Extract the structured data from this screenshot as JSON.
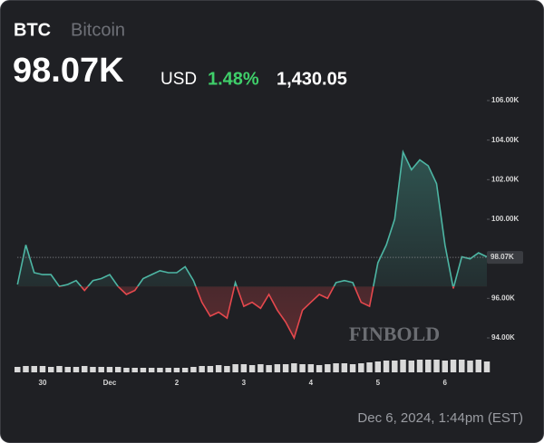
{
  "chart_data": {
    "type": "line",
    "symbol": "BTC",
    "name": "Bitcoin",
    "last_price": {
      "value": 98.07,
      "label": "98.07K"
    },
    "currency": "USD",
    "change_pct": "1.48%",
    "change_abs": "1,430.05",
    "timestamp": "Dec 6, 2024, 1:44pm (EST)",
    "watermark": "FINBOLD",
    "categories": [
      null,
      null,
      null,
      "30",
      null,
      null,
      null,
      null,
      null,
      null,
      null,
      "Dec",
      null,
      null,
      null,
      null,
      null,
      null,
      null,
      "2",
      null,
      null,
      null,
      null,
      null,
      null,
      null,
      "3",
      null,
      null,
      null,
      null,
      null,
      null,
      null,
      "4",
      null,
      null,
      null,
      null,
      null,
      null,
      null,
      "5",
      null,
      null,
      null,
      null,
      null,
      null,
      null,
      "6",
      null,
      null,
      null,
      null,
      null
    ],
    "series": [
      {
        "name": "BTC",
        "color": "#4db6a4",
        "below_color": "#e5484d",
        "values": [
          96.7,
          98.7,
          97.3,
          97.2,
          97.2,
          96.6,
          96.7,
          96.9,
          96.4,
          96.9,
          97.0,
          97.2,
          96.6,
          96.2,
          96.4,
          97.0,
          97.2,
          97.4,
          97.3,
          97.3,
          97.6,
          96.9,
          95.8,
          95.1,
          95.3,
          95.0,
          96.8,
          95.6,
          95.8,
          95.5,
          96.2,
          95.4,
          94.8,
          94.0,
          95.4,
          95.8,
          96.2,
          96.0,
          96.8,
          96.9,
          96.8,
          95.8,
          95.6,
          97.8,
          98.7,
          100.0,
          103.4,
          102.5,
          103.0,
          102.7,
          101.8,
          98.7,
          96.5,
          98.1,
          98.0,
          98.3,
          98.1
        ]
      }
    ],
    "baseline": 96.6,
    "volume": {
      "color": "#d9d9d9",
      "values": [
        6,
        7,
        7,
        7,
        6,
        7,
        6,
        6,
        7,
        6,
        6,
        6,
        6,
        5,
        5,
        5,
        5,
        5,
        5,
        5,
        5,
        6,
        7,
        7,
        8,
        7,
        9,
        9,
        8,
        9,
        8,
        9,
        9,
        10,
        9,
        9,
        8,
        9,
        10,
        10,
        9,
        10,
        11,
        12,
        13,
        13,
        14,
        13,
        14,
        14,
        14,
        13,
        14,
        14,
        13,
        14,
        12
      ],
      "vlim": [
        0,
        16
      ]
    },
    "ylim": [
      94,
      106
    ],
    "yticks": [
      {
        "value": 94,
        "label": "94.00K"
      },
      {
        "value": 96,
        "label": "96.00K"
      },
      {
        "value": 98,
        "label": "98.00K"
      },
      {
        "value": 100,
        "label": "100.00K"
      },
      {
        "value": 102,
        "label": "102.00K"
      },
      {
        "value": 104,
        "label": "104.00K"
      },
      {
        "value": 106,
        "label": "106.00K"
      }
    ]
  }
}
